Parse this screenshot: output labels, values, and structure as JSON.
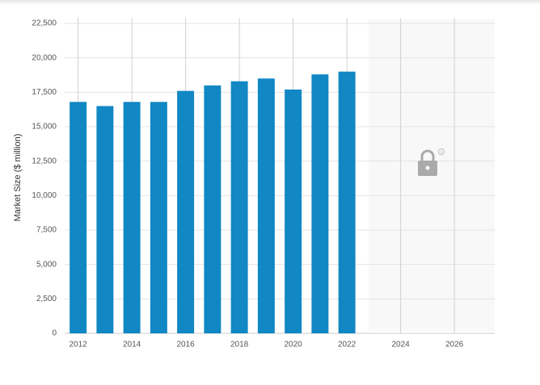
{
  "chart_data": {
    "type": "bar",
    "y_label": "Market Size ($ million)",
    "x": [
      2012,
      2013,
      2014,
      2015,
      2016,
      2017,
      2018,
      2019,
      2020,
      2021,
      2022
    ],
    "values": [
      16800,
      16500,
      16800,
      16800,
      17600,
      18000,
      18300,
      18500,
      17700,
      18800,
      19000
    ],
    "color": "#1187c4",
    "xlim": [
      2011.5,
      2027.5
    ],
    "xticks": [
      2012,
      2014,
      2016,
      2018,
      2020,
      2022,
      2024,
      2026
    ],
    "ylim": [
      0,
      22500
    ],
    "yticks": [
      0,
      {
        "value": 2500,
        "label": "2,500"
      },
      {
        "value": 5000,
        "label": "5,000"
      },
      {
        "value": 7500,
        "label": "7,500"
      },
      {
        "value": 10000,
        "label": "10,000"
      },
      {
        "value": 12500,
        "label": "12,500"
      },
      {
        "value": 15000,
        "label": "15,000"
      },
      {
        "value": 17500,
        "label": "17,500"
      },
      {
        "value": 20000,
        "label": "20,000"
      },
      {
        "value": 22500,
        "label": "22,500"
      }
    ],
    "grid": true
  }
}
